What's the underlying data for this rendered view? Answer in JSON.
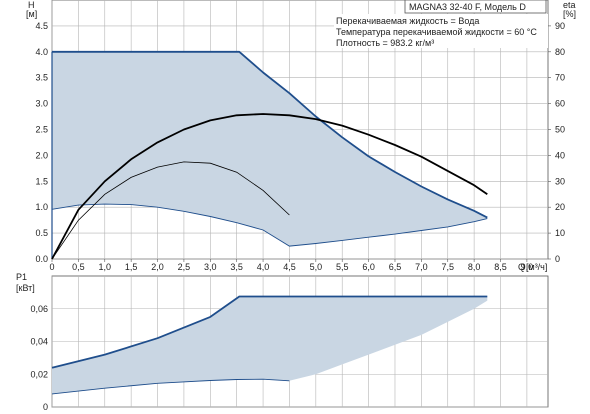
{
  "chart_data": [
    {
      "type": "line",
      "model": "MAGNA3 32-40 F, Модель D",
      "annotations": [
        "Перекачиваемая жидкость = Вода",
        "Температура перекачиваемой жидкости = 60 °C",
        "Плотность = 983.2 кг/м³"
      ],
      "ylabel": "H",
      "yunit": "[м]",
      "y2label": "eta",
      "y2unit": "[%]",
      "xlabel": "Q",
      "xunit": "[м³/ч]",
      "xlim": [
        0,
        9.4
      ],
      "ylim": [
        0,
        5.0
      ],
      "y2lim": [
        0,
        100
      ],
      "xticks": [
        "0",
        "0,5",
        "1,0",
        "1,5",
        "2,0",
        "2,5",
        "3,0",
        "3,5",
        "4,0",
        "4,5",
        "5,0",
        "5,5",
        "6,0",
        "6,5",
        "7,0",
        "7,5",
        "8,0",
        "8,5",
        "9,0"
      ],
      "yticks": [
        "0.0",
        "0.5",
        "1.0",
        "1.5",
        "2.0",
        "2.5",
        "3.0",
        "3.5",
        "4.0",
        "4.5"
      ],
      "y2ticks": [
        "0",
        "10",
        "20",
        "30",
        "40",
        "50",
        "60",
        "70",
        "80",
        "90"
      ],
      "grid": true,
      "colors": {
        "area": "#c9d6e3",
        "max_curve": "#1f4e8c",
        "eff_curve": "#000000",
        "grid": "#b5b5b5"
      },
      "series": [
        {
          "role": "max-head",
          "x": [
            0,
            3.55,
            4.0,
            4.5,
            5.0,
            5.5,
            6.0,
            6.5,
            7.0,
            7.5,
            8.0,
            8.25
          ],
          "y": [
            4.0,
            4.0,
            3.6,
            3.2,
            2.75,
            2.35,
            1.98,
            1.68,
            1.4,
            1.15,
            0.93,
            0.8
          ]
        },
        {
          "role": "min-head",
          "x": [
            0,
            0.5,
            1.0,
            1.5,
            2.0,
            2.5,
            3.0,
            3.5,
            4.0,
            4.5,
            5.0,
            5.5,
            6.0,
            6.5,
            7.0,
            7.5,
            8.0,
            8.25
          ],
          "y": [
            0.96,
            1.04,
            1.06,
            1.05,
            1.0,
            0.92,
            0.82,
            0.7,
            0.56,
            0.25,
            0.3,
            0.36,
            0.42,
            0.48,
            0.55,
            0.62,
            0.72,
            0.78
          ]
        },
        {
          "role": "efficiency-max",
          "axis": "y2",
          "x": [
            0,
            0.5,
            1.0,
            1.5,
            2.0,
            2.5,
            3.0,
            3.5,
            4.0,
            4.5,
            5.0,
            5.5,
            6.0,
            6.5,
            7.0,
            7.5,
            8.0,
            8.25
          ],
          "y": [
            0,
            19,
            30,
            38.5,
            45,
            50,
            53.5,
            55.5,
            56,
            55.5,
            54,
            51.5,
            48,
            44,
            39.5,
            34,
            28.5,
            25
          ]
        },
        {
          "role": "efficiency-min",
          "axis": "y2",
          "x": [
            0,
            0.5,
            1.0,
            1.5,
            2.0,
            2.5,
            3.0,
            3.5,
            4.0,
            4.5
          ],
          "y": [
            0,
            15,
            25,
            31.5,
            35.5,
            37.5,
            37,
            33.5,
            26.5,
            17
          ]
        }
      ]
    },
    {
      "type": "area",
      "ylabel": "P1",
      "yunit": "[кВт]",
      "xlim": [
        0,
        9.4
      ],
      "ylim": [
        0,
        0.08
      ],
      "yticks": [
        "0",
        "0,02",
        "0,04",
        "0,06"
      ],
      "grid": true,
      "series": [
        {
          "role": "max-power",
          "x": [
            0,
            1.0,
            2.0,
            3.0,
            3.55,
            4.5,
            6.0,
            7.5,
            8.25
          ],
          "y": [
            0.024,
            0.032,
            0.042,
            0.055,
            0.0675,
            0.0675,
            0.0675,
            0.0675,
            0.0675
          ]
        },
        {
          "role": "min-power",
          "x": [
            0,
            1.0,
            2.0,
            3.0,
            3.5,
            4.0,
            4.5,
            5.0,
            5.5,
            6.0,
            6.5,
            7.0,
            7.5,
            8.0,
            8.25
          ],
          "y": [
            0.008,
            0.0115,
            0.0145,
            0.0162,
            0.0168,
            0.017,
            0.016,
            0.02,
            0.026,
            0.032,
            0.038,
            0.044,
            0.052,
            0.06,
            0.065
          ]
        }
      ]
    }
  ]
}
